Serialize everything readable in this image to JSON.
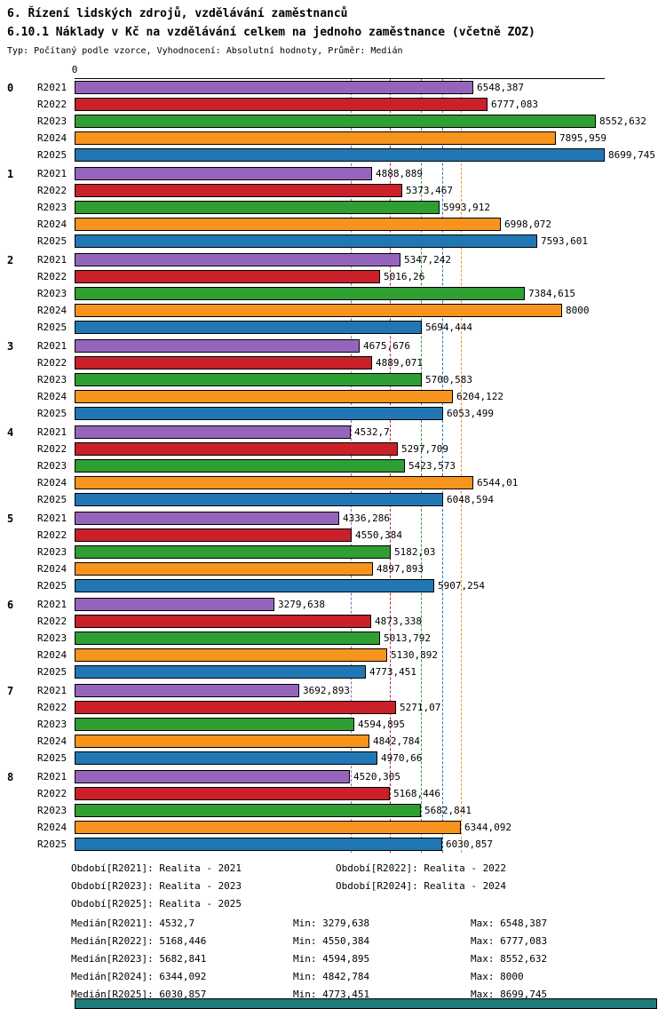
{
  "header": {
    "title": "6. Řízení lidských zdrojů, vzdělávání zaměstnanců",
    "subtitle": "6.10.1 Náklady v Kč na vzdělávání celkem na jednoho zaměstnance (včetně ZOZ)",
    "meta": "Typ: Počítaný podle vzorce, Vyhodnocení: Absolutní hodnoty, Průměr: Medián"
  },
  "chart_data": {
    "type": "bar",
    "orientation": "horizontal",
    "title": "6.10.1 Náklady v Kč na vzdělávání celkem na jednoho zaměstnance (včetně ZOZ)",
    "xlabel": "",
    "ylabel": "",
    "xlim": [
      0,
      8700
    ],
    "axis_origin_label": "0",
    "grid": "median-reference-lines",
    "legend_position": "bottom",
    "categories": [
      "0",
      "1",
      "2",
      "3",
      "4",
      "5",
      "6",
      "7",
      "8"
    ],
    "series": [
      {
        "name": "R2021",
        "color": "#9565bd",
        "median": 4532.7,
        "values": [
          6548.387,
          4888.889,
          5347.242,
          4675.676,
          4532.7,
          4336.286,
          3279.638,
          3692.893,
          4520.305
        ],
        "labels": [
          "6548,387",
          "4888,889",
          "5347,242",
          "4675,676",
          "4532,7",
          "4336,286",
          "3279,638",
          "3692,893",
          "4520,305"
        ]
      },
      {
        "name": "R2022",
        "color": "#c9202a",
        "median": 5168.446,
        "values": [
          6777.083,
          5373.467,
          5016.26,
          4889.071,
          5297.709,
          4550.384,
          4873.338,
          5271.07,
          5168.446
        ],
        "labels": [
          "6777,083",
          "5373,467",
          "5016,26",
          "4889,071",
          "5297,709",
          "4550,384",
          "4873,338",
          "5271,07",
          "5168,446"
        ]
      },
      {
        "name": "R2023",
        "color": "#2f9e33",
        "median": 5682.841,
        "values": [
          8552.632,
          5993.912,
          7384.615,
          5700.583,
          5423.573,
          5182.03,
          5013.792,
          4594.895,
          5682.841
        ],
        "labels": [
          "8552,632",
          "5993,912",
          "7384,615",
          "5700,583",
          "5423,573",
          "5182,03",
          "5013,792",
          "4594,895",
          "5682,841"
        ]
      },
      {
        "name": "R2024",
        "color": "#f7941d",
        "median": 6344.092,
        "values": [
          7895.959,
          6998.072,
          8000,
          6204.122,
          6544.01,
          4897.893,
          5130.892,
          4842.784,
          6344.092
        ],
        "labels": [
          "7895,959",
          "6998,072",
          "8000",
          "6204,122",
          "6544,01",
          "4897,893",
          "5130,892",
          "4842,784",
          "6344,092"
        ]
      },
      {
        "name": "R2025",
        "color": "#2177b4",
        "median": 6030.857,
        "values": [
          8699.745,
          7593.601,
          5694.444,
          6053.499,
          6048.594,
          5907.254,
          4773.451,
          4970.66,
          6030.857
        ],
        "labels": [
          "8699,745",
          "7593,601",
          "5694,444",
          "6053,499",
          "6048,594",
          "5907,254",
          "4773,451",
          "4970,66",
          "6030,857"
        ]
      }
    ]
  },
  "legend": {
    "items": [
      "Období[R2021]: Realita - 2021",
      "Období[R2022]: Realita - 2022",
      "Období[R2023]: Realita - 2023",
      "Období[R2024]: Realita - 2024",
      "Období[R2025]: Realita - 2025"
    ]
  },
  "stats": {
    "rows": [
      [
        "Medián[R2021]: 4532,7",
        "Min: 3279,638",
        "Max: 6548,387"
      ],
      [
        "Medián[R2022]: 5168,446",
        "Min: 4550,384",
        "Max: 6777,083"
      ],
      [
        "Medián[R2023]: 5682,841",
        "Min: 4594,895",
        "Max: 8552,632"
      ],
      [
        "Medián[R2024]: 6344,092",
        "Min: 4842,784",
        "Max: 8000"
      ],
      [
        "Medián[R2025]: 6030,857",
        "Min: 4773,451",
        "Max: 8699,745"
      ]
    ]
  },
  "footer_bar": {
    "color": "#1e7b78"
  }
}
